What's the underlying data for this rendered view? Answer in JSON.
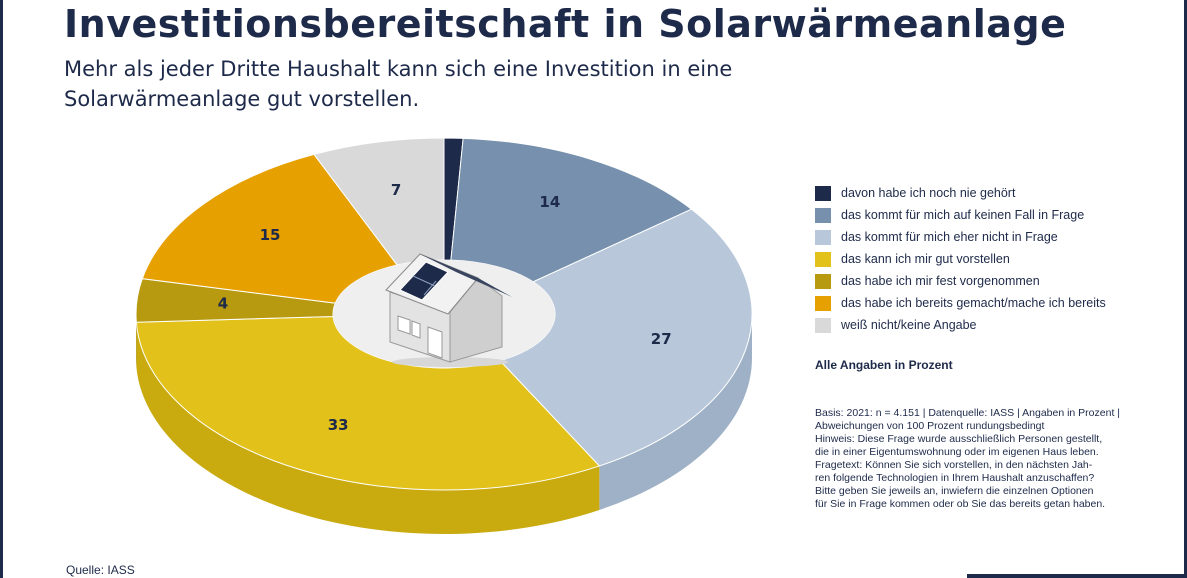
{
  "header": {
    "title": "Investitionsbereitschaft in Solarwärmeanlage",
    "subtitle_line1": "Mehr als jeder Dritte Haushalt kann sich eine Investition in eine",
    "subtitle_line2": "Solarwärmeanlage gut vorstellen."
  },
  "chart_data": {
    "type": "pie",
    "style": "3d-donut",
    "title": "Investitionsbereitschaft in Solarwärmeanlage",
    "unit": "Prozent",
    "slices": [
      {
        "label": "davon habe ich noch nie gehört",
        "value": 1,
        "color": "#1e2a4a",
        "side_color": "#141c33"
      },
      {
        "label": "das kommt für mich auf keinen Fall in Frage",
        "value": 14,
        "color": "#7690ad",
        "side_color": "#5f7893"
      },
      {
        "label": "das kommt für mich eher nicht in Frage",
        "value": 27,
        "color": "#b8c8da",
        "side_color": "#9fb1c6"
      },
      {
        "label": "das kann ich mir gut vorstellen",
        "value": 33,
        "color": "#e2c21a",
        "side_color": "#c9aa0f"
      },
      {
        "label": "das habe ich mir fest vorgenommen",
        "value": 4,
        "color": "#b79a10",
        "side_color": "#9b820b"
      },
      {
        "label": "das habe ich bereits gemacht/mache ich bereits",
        "value": 15,
        "color": "#e6a000",
        "side_color": "#c98a00"
      },
      {
        "label": "weiß nicht/keine Angabe",
        "value": 7,
        "color": "#d9d9d9",
        "side_color": "#bdbdbd"
      }
    ]
  },
  "legend_note": "Alle Angaben in Prozent",
  "basis": {
    "line1": "Basis: 2021: n = 4.151 | Datenquelle: IASS | Angaben in Prozent |",
    "line2": "Abweichungen von 100 Prozent rundungsbedingt",
    "line3": "Hinweis: Diese Frage wurde ausschließlich Personen gestellt,",
    "line4": "die in einer Eigentumswohnung oder im eigenen Haus leben.",
    "line5": "Fragetext: Können Sie sich vorstellen, in den nächsten Jah-",
    "line6": "ren folgende Technologien in Ihrem Haushalt anzuschaffen?",
    "line7": "Bitte geben Sie jeweils an, inwiefern die einzelnen Optionen",
    "line8": "für Sie in Frage kommen oder ob Sie das bereits getan haben."
  },
  "source": "Quelle: IASS",
  "icons": {
    "center": "house-with-solar-panel-icon"
  }
}
